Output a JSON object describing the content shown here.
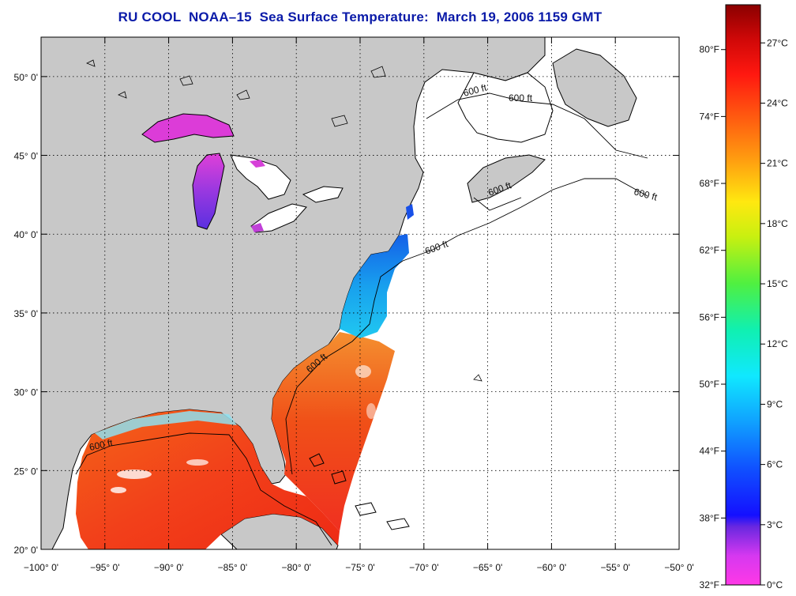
{
  "title": "RU COOL  NOAA–15  Sea Surface Temperature:  March 19, 2006 1159 GMT",
  "colors": {
    "land": "#c8c8c8",
    "coast": "#000000",
    "sst_warm": "#f02a10",
    "sst_mid": "#f46a10",
    "sst_cool": "#18a6ee",
    "lake": "#dc3cd8"
  },
  "map": {
    "lon_range": [
      -100,
      -50
    ],
    "lat_range": [
      20,
      52.5
    ],
    "x_ticks": [
      {
        "lon": -100,
        "label": "−100° 0'"
      },
      {
        "lon": -95,
        "label": "−95° 0'"
      },
      {
        "lon": -90,
        "label": "−90° 0'"
      },
      {
        "lon": -85,
        "label": "−85° 0'"
      },
      {
        "lon": -80,
        "label": "−80° 0'"
      },
      {
        "lon": -75,
        "label": "−75° 0'"
      },
      {
        "lon": -70,
        "label": "−70° 0'"
      },
      {
        "lon": -65,
        "label": "−65° 0'"
      },
      {
        "lon": -60,
        "label": "−60° 0'"
      },
      {
        "lon": -55,
        "label": "−55° 0'"
      },
      {
        "lon": -50,
        "label": "−50° 0'"
      }
    ],
    "y_ticks": [
      {
        "lat": 20,
        "label": "20° 0'"
      },
      {
        "lat": 25,
        "label": "25° 0'"
      },
      {
        "lat": 30,
        "label": "30° 0'"
      },
      {
        "lat": 35,
        "label": "35° 0'"
      },
      {
        "lat": 40,
        "label": "40° 0'"
      },
      {
        "lat": 45,
        "label": "45° 0'"
      },
      {
        "lat": 50,
        "label": "50° 0'"
      }
    ],
    "depth_contour_label": "600 ft"
  },
  "colorbar": {
    "fahrenheit": [
      {
        "value": 80,
        "label": "80°F"
      },
      {
        "value": 74,
        "label": "74°F"
      },
      {
        "value": 68,
        "label": "68°F"
      },
      {
        "value": 62,
        "label": "62°F"
      },
      {
        "value": 56,
        "label": "56°F"
      },
      {
        "value": 50,
        "label": "50°F"
      },
      {
        "value": 44,
        "label": "44°F"
      },
      {
        "value": 38,
        "label": "38°F"
      },
      {
        "value": 32,
        "label": "32°F"
      }
    ],
    "celsius": [
      {
        "value": 27,
        "label": "27°C"
      },
      {
        "value": 24,
        "label": "24°C"
      },
      {
        "value": 21,
        "label": "21°C"
      },
      {
        "value": 18,
        "label": "18°C"
      },
      {
        "value": 15,
        "label": "15°C"
      },
      {
        "value": 12,
        "label": "12°C"
      },
      {
        "value": 9,
        "label": "9°C"
      },
      {
        "value": 6,
        "label": "6°C"
      },
      {
        "value": 3,
        "label": "3°C"
      },
      {
        "value": 0,
        "label": "0°C"
      }
    ],
    "c_range": [
      0,
      28.9
    ]
  }
}
